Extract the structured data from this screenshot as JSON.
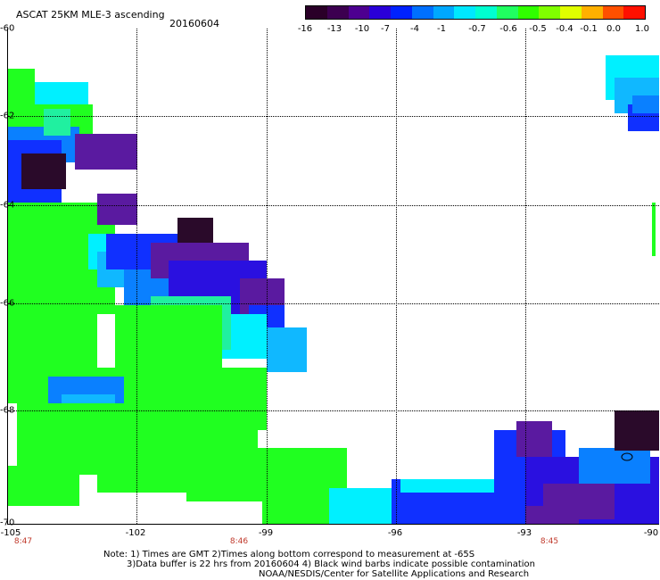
{
  "header": {
    "title": "ASCAT 25KM MLE-3 ascending",
    "date": "20160604"
  },
  "colorbar": {
    "colors": [
      "#2a0028",
      "#3c0050",
      "#4d0090",
      "#2a00d8",
      "#0022ff",
      "#0070ff",
      "#00a8ff",
      "#00e8ff",
      "#00ffd0",
      "#20ff60",
      "#30ff00",
      "#80ff00",
      "#e0ff00",
      "#ffb000",
      "#ff5000",
      "#ff1000"
    ],
    "ticks": [
      "-16",
      "-13",
      "-10",
      "-7",
      "-4",
      "-1",
      "-0.7",
      "-0.6",
      "-0.5",
      "-0.4",
      "-0.1",
      "0.0",
      "1.0"
    ]
  },
  "axes": {
    "y_labels": [
      "-60",
      "-62",
      "-64",
      "-66",
      "-68",
      "-70"
    ],
    "x_labels": [
      "-105",
      "-102",
      "-99",
      "-96",
      "-93",
      "-90"
    ],
    "time_labels": [
      "8:47",
      "8:46",
      "8:45"
    ]
  },
  "notes": {
    "line1": "Note: 1) Times are GMT 2)Times along bottom correspond to measurement at -65S",
    "line2": "3)Data buffer is 22 hrs from 20160604 4) Black wind barbs indicate possible contamination",
    "line3": "NOAA/NESDIS/Center for Satellite Applications and Research"
  },
  "map_data": {
    "palette": {
      "dk": "#2a0a2a",
      "pu": "#5a1aa0",
      "bl": "#2a10e0",
      "b2": "#1030ff",
      "lb": "#0a80ff",
      "sk": "#10b8ff",
      "cy": "#00f0ff",
      "gc": "#20f0a0",
      "gr": "#20ff20"
    }
  }
}
